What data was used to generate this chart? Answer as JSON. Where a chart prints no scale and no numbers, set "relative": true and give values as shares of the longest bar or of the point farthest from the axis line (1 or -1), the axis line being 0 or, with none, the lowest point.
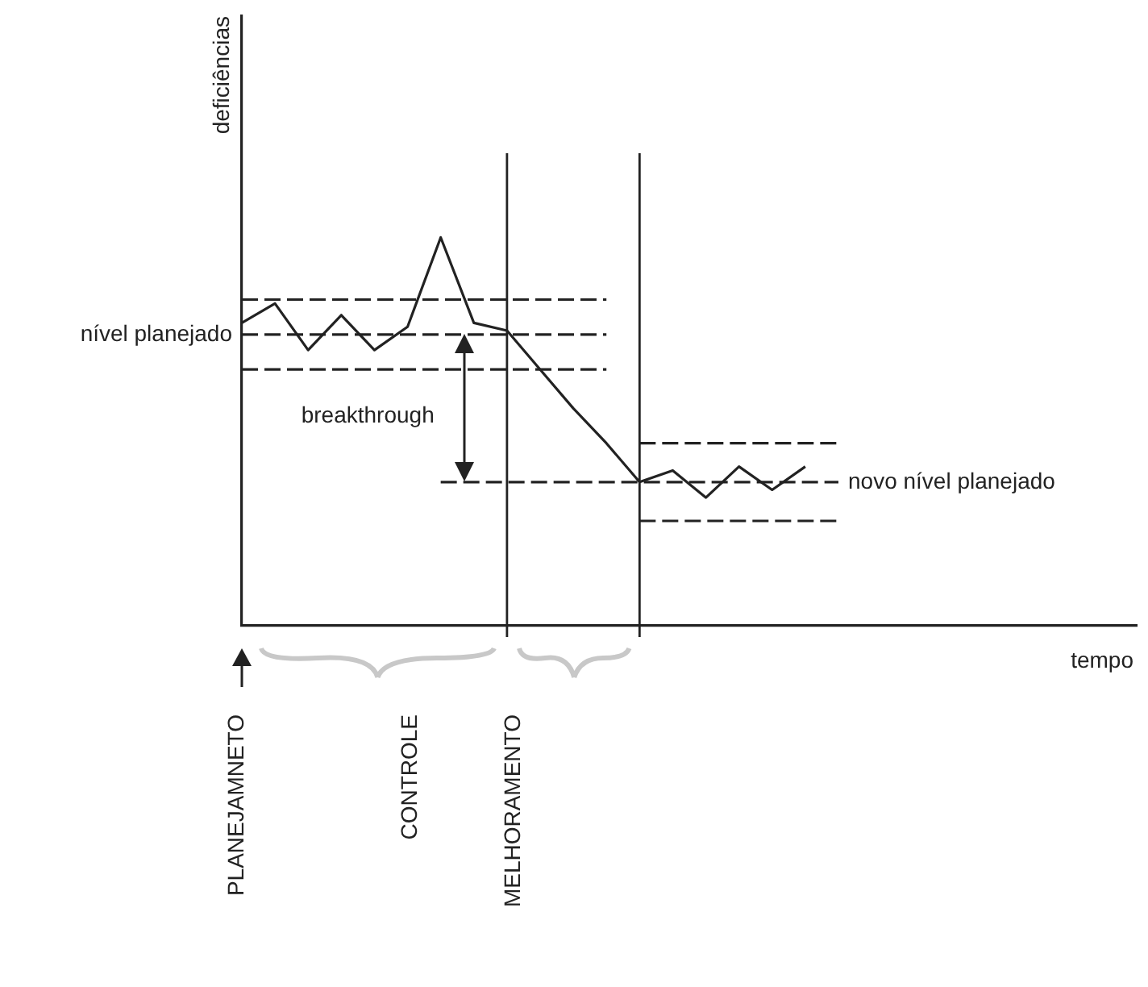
{
  "chart_data": {
    "type": "line",
    "relative": true,
    "xlabel": "tempo",
    "ylabel": "deficiências",
    "grid": false,
    "legend": false,
    "marker": "none",
    "categories": [
      null,
      null,
      null,
      null,
      null,
      null,
      null,
      null,
      null,
      null,
      null,
      null,
      null,
      null,
      null,
      null,
      null,
      null,
      null,
      null,
      null,
      null,
      null,
      null,
      null,
      null,
      null,
      null
    ],
    "series": [
      {
        "color": "#222222",
        "line_style": "solid",
        "values": [
          0.78,
          0.83,
          0.71,
          0.8,
          0.71,
          0.77,
          1,
          0.78,
          0.76,
          0.66,
          0.56,
          0.47,
          0.37,
          0.4,
          0.33,
          0.41,
          0.35,
          0.41,
          null,
          null,
          null,
          null,
          null,
          null,
          null,
          null,
          null,
          null
        ]
      },
      {
        "color": "#222222",
        "line_style": "dashed",
        "values": [
          0.84,
          0.84,
          0.84,
          0.84,
          0.84,
          0.84,
          0.84,
          0.84,
          0.84,
          0.84,
          0.84,
          0.84,
          null,
          null,
          null,
          null,
          null,
          null,
          null,
          null,
          null,
          null,
          null,
          null,
          null,
          null,
          null,
          null
        ]
      },
      {
        "color": "#222222",
        "line_style": "dashed",
        "values": [
          0.75,
          0.75,
          0.75,
          0.75,
          0.75,
          0.75,
          0.75,
          0.75,
          0.75,
          0.75,
          0.75,
          0.75,
          null,
          null,
          null,
          null,
          null,
          null,
          null,
          null,
          null,
          null,
          null,
          null,
          null,
          null,
          null,
          null
        ]
      },
      {
        "color": "#222222",
        "line_style": "dashed",
        "values": [
          0.66,
          0.66,
          0.66,
          0.66,
          0.66,
          0.66,
          0.66,
          0.66,
          0.66,
          0.66,
          0.66,
          0.66,
          null,
          null,
          null,
          null,
          null,
          null,
          null,
          null,
          null,
          null,
          null,
          null,
          null,
          null,
          null,
          null
        ]
      },
      {
        "color": "#222222",
        "line_style": "dashed",
        "values": [
          null,
          null,
          null,
          null,
          null,
          null,
          null,
          null,
          null,
          null,
          null,
          null,
          0.47,
          0.47,
          0.47,
          0.47,
          0.47,
          0.47,
          0.47,
          null,
          null,
          null,
          null,
          null,
          null,
          null,
          null,
          null
        ]
      },
      {
        "color": "#222222",
        "line_style": "dashed",
        "values": [
          null,
          null,
          null,
          null,
          null,
          null,
          0.37,
          0.37,
          0.37,
          0.37,
          0.37,
          0.37,
          0.37,
          0.37,
          0.37,
          0.37,
          0.37,
          0.37,
          0.37,
          null,
          null,
          null,
          null,
          null,
          null,
          null,
          null,
          null
        ]
      },
      {
        "color": "#222222",
        "line_style": "dashed",
        "values": [
          null,
          null,
          null,
          null,
          null,
          null,
          null,
          null,
          null,
          null,
          null,
          null,
          0.27,
          0.27,
          0.27,
          0.27,
          0.27,
          0.27,
          0.27,
          null,
          null,
          null,
          null,
          null,
          null,
          null,
          null,
          null
        ]
      }
    ],
    "annotations": [
      "nível planejado",
      "breakthrough",
      "novo nível planejado",
      "PLANEJAMNETO",
      "CONTROLE",
      "MELHORAMENTO"
    ]
  }
}
